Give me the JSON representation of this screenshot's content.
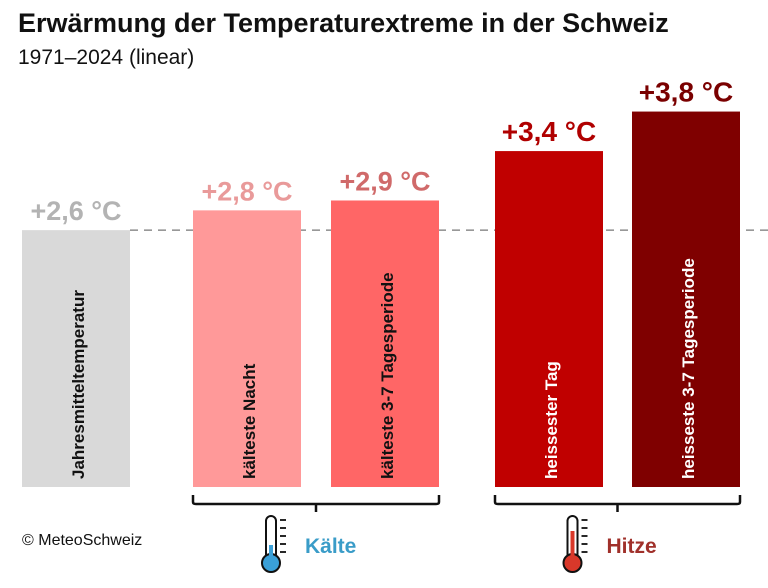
{
  "title": "Erwärmung der Temperaturextreme in der Schweiz",
  "subtitle": "1971–2024 (linear)",
  "credit": "© MeteoSchweiz",
  "chart_data": {
    "type": "bar",
    "title": "Erwärmung der Temperaturextreme in der Schweiz",
    "subtitle": "1971–2024 (linear)",
    "unit": "°C",
    "categories": [
      "Jahresmitteltemperatur",
      "kälteste Nacht",
      "kälteste 3-7 Tagesperiode",
      "heissester Tag",
      "heisseste 3-7 Tagesperiode"
    ],
    "values": [
      2.6,
      2.8,
      2.9,
      3.4,
      3.8
    ],
    "data_labels": [
      "+2,6 °C",
      "+2,8 °C",
      "+2,9 °C",
      "+3,4 °C",
      "+3,8 °C"
    ],
    "bar_colors": [
      "#d9d9d9",
      "#ff9999",
      "#ff6666",
      "#c00000",
      "#7f0000"
    ],
    "label_colors": [
      "#b3b3b3",
      "#e99a9a",
      "#d06a6a",
      "#b00000",
      "#7a0000"
    ],
    "reference_line": {
      "value": 2.6,
      "style": "dashed"
    },
    "groups": [
      {
        "label": "Kälte",
        "members": [
          1,
          2
        ],
        "color": "#3a9cc8",
        "icon": "thermometer-cold-icon"
      },
      {
        "label": "Hitze",
        "members": [
          3,
          4
        ],
        "color": "#a0302a",
        "icon": "thermometer-hot-icon"
      }
    ],
    "grid": false,
    "legend": "none"
  }
}
